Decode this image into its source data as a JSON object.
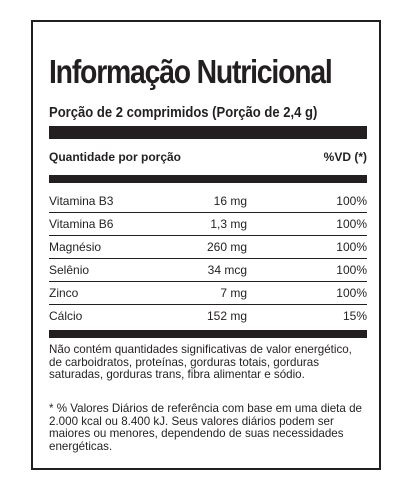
{
  "label": {
    "title": "Informação Nutricional",
    "portion": "Porção de 2 comprimidos (Porção de 2,4 g)",
    "header_left": "Quantidade por porção",
    "header_right": "%VD (*)",
    "rows": [
      {
        "name": "Vitamina B3",
        "amount": "16 mg",
        "vd": "100%"
      },
      {
        "name": "Vitamina B6",
        "amount": "1,3 mg",
        "vd": "100%"
      },
      {
        "name": "Magnésio",
        "amount": "260 mg",
        "vd": "100%"
      },
      {
        "name": "Selênio",
        "amount": "34 mcg",
        "vd": "100%"
      },
      {
        "name": "Zinco",
        "amount": "7 mg",
        "vd": "100%"
      },
      {
        "name": "Cálcio",
        "amount": "152 mg",
        "vd": "15%"
      }
    ],
    "note1": "Não contém quantidades significativas de valor energético, de carboidratos, proteínas, gorduras totais, gorduras saturadas, gorduras trans, fibra alimentar e sódio.",
    "note2": "* % Valores Diários de referência com base em uma dieta de 2.000 kcal ou 8.400 kJ. Seus valores diários podem ser maiores ou menores, dependendo de suas necessidades energéticas."
  }
}
